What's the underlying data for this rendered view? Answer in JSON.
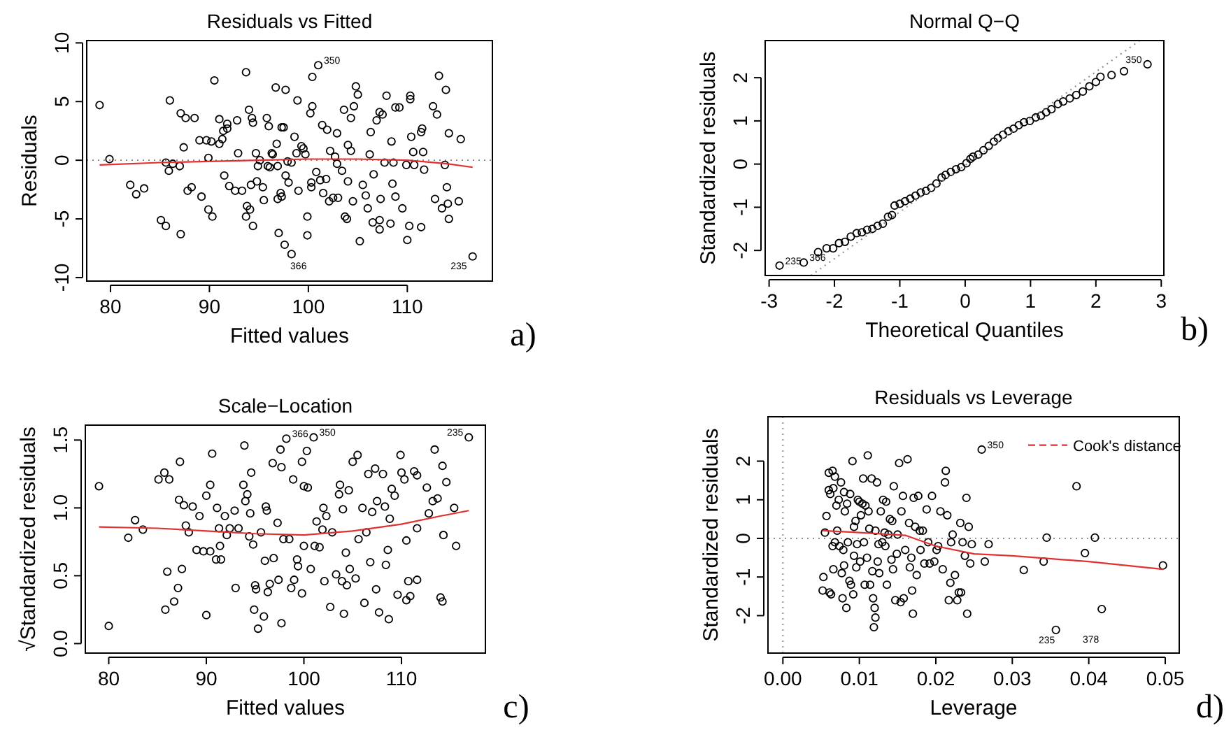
{
  "chart_data": [
    {
      "type": "scatter",
      "title": "Residuals vs Fitted",
      "xlabel": "Fitted values",
      "ylabel": "Residuals",
      "xlim": [
        77.6,
        118.6
      ],
      "ylim": [
        -10.3,
        10.2
      ],
      "xticks": [
        80,
        90,
        100,
        110
      ],
      "yticks": [
        -10,
        -5,
        0,
        5,
        10
      ],
      "marker": "circle",
      "series": [
        {
          "color": "#000000",
          "x": [
            78.9,
            79.9,
            82,
            82.6,
            83.4,
            85.1,
            85.6,
            85.6,
            85.9,
            86,
            86.3,
            87.1,
            87,
            87.1,
            87.4,
            87.6,
            87.8,
            88.2,
            88.5,
            89,
            89.2,
            89.7,
            89.9,
            89.9,
            90.2,
            90.3,
            90.5,
            91,
            91,
            91.3,
            91.4,
            91.5,
            91.8,
            91.8,
            92,
            92.6,
            92.8,
            92.9,
            93.3,
            93.7,
            93.7,
            93.8,
            94,
            94.1,
            94.2,
            94.3,
            94.4,
            94.4,
            94.7,
            94.8,
            94.9,
            95.1,
            95.4,
            95.5,
            95.8,
            95.9,
            96,
            96.1,
            96.3,
            96.4,
            96.7,
            96.8,
            96.9,
            96.9,
            97,
            97.2,
            97.3,
            97.5,
            97.3,
            97.6,
            97.7,
            97.7,
            97.9,
            98,
            98.3,
            98.3,
            98.6,
            98.8,
            98.9,
            99,
            99.3,
            99.5,
            99.7,
            99.9,
            99.9,
            100.2,
            100.3,
            100.3,
            100.4,
            100.4,
            100.8,
            101,
            101.2,
            101.4,
            101.5,
            101.8,
            101.9,
            102.1,
            102.2,
            102.5,
            102.7,
            102.9,
            102.9,
            103,
            103.4,
            103.6,
            103.7,
            103.9,
            104,
            104,
            104.3,
            104.3,
            104.5,
            104.6,
            104.8,
            105,
            105.2,
            105.5,
            105.8,
            106,
            106.2,
            106.3,
            106.5,
            106.6,
            106.9,
            107.2,
            107.2,
            107.2,
            107.3,
            107.5,
            107.7,
            107.9,
            108.3,
            108.4,
            108.5,
            108.6,
            108.8,
            108.8,
            109.2,
            109.5,
            109.9,
            110,
            110.2,
            110.3,
            110.3,
            110.4,
            110.6,
            110.7,
            111.4,
            111.4,
            111.5,
            111.6,
            111.7,
            112.6,
            112.8,
            113,
            113.2,
            113.5,
            113.8,
            113.9,
            114,
            114.2,
            114.1,
            114.2,
            115.2,
            115.4,
            116.6
          ],
          "values": [
            4.7,
            0.1,
            -2.1,
            -2.9,
            -2.4,
            -5.1,
            -5.6,
            -0.2,
            -0.9,
            5.1,
            -0.3,
            4,
            -0.5,
            -6.3,
            1.1,
            3.6,
            -2.6,
            -2.3,
            3.6,
            1.7,
            -3.1,
            1.7,
            0.2,
            -4.2,
            1.6,
            -4.8,
            6.8,
            3.5,
            1.4,
            1.8,
            2.5,
            -1.3,
            2.7,
            3.1,
            -2.2,
            -2.6,
            3.4,
            0.6,
            -2.6,
            7.5,
            -4.8,
            -3.9,
            4.3,
            -4.2,
            -2.1,
            3.6,
            -5.6,
            3.2,
            0.6,
            -1.8,
            -0.5,
            0,
            -2.3,
            -3.4,
            3.6,
            -0.5,
            2.9,
            -0.6,
            0.6,
            0.5,
            6.2,
            1.4,
            -0.5,
            -3.3,
            -6.2,
            -2.8,
            2.8,
            2.8,
            -3.1,
            -7.2,
            6,
            -1.3,
            -0.1,
            -1.9,
            -8,
            -0.2,
            2,
            0.6,
            5.1,
            -2.6,
            1.2,
            1,
            0.5,
            -6.4,
            -4.8,
            4,
            -1.9,
            -2.3,
            4.6,
            7.1,
            -1,
            8.1,
            -1.7,
            3,
            -2.8,
            -1.6,
            2.6,
            -3.5,
            0.8,
            -3.2,
            0.3,
            2.3,
            -0.3,
            -3.2,
            -0.9,
            4.3,
            -4.8,
            -5,
            1.3,
            -1.8,
            0.8,
            3.6,
            -3.5,
            4.6,
            6.3,
            5.6,
            -6.9,
            -2.1,
            -3,
            -4.1,
            0.5,
            2.4,
            -5.3,
            -1.2,
            3.4,
            4.1,
            -5.1,
            -5.9,
            -3.3,
            3.9,
            -0.2,
            5.5,
            -5.4,
            1.6,
            -2,
            -0.2,
            4.5,
            -3.1,
            4.5,
            -4.1,
            -0.4,
            -6.8,
            -5.6,
            5.5,
            5.2,
            2,
            0.7,
            -0.4,
            -5.7,
            2.4,
            2.7,
            0.7,
            -0.8,
            4.6,
            -3.3,
            3.9,
            7.2,
            -4.1,
            -0.4,
            6,
            -2.3,
            2.3,
            -3.7,
            -5,
            -3.5,
            1.8,
            -8.2
          ]
        },
        {
          "type": "line",
          "marker": "none",
          "color": "#e03030",
          "x": [
            78.9,
            85,
            90,
            95,
            100,
            105,
            110,
            114,
            116.6
          ],
          "values": [
            -0.4,
            -0.2,
            -0.1,
            0,
            0.1,
            0.1,
            0,
            -0.3,
            -0.6
          ]
        }
      ],
      "ref_lines": [
        {
          "axis": "y",
          "value": 0,
          "color": "#808080",
          "line_style": "dotted"
        }
      ],
      "annotations": [
        {
          "text": "350",
          "x": 101,
          "y": 8.1
        },
        "366",
        "235",
        "a)"
      ]
    },
    {
      "type": "scatter",
      "title": "Normal Q−Q",
      "xlabel": "Theoretical Quantiles",
      "ylabel": "Standardized residuals",
      "xlim": [
        -3.06,
        3.04
      ],
      "ylim": [
        -2.58,
        2.86
      ],
      "xticks": [
        -3,
        -2,
        -1,
        0,
        1,
        2,
        3
      ],
      "yticks": [
        -2,
        -1,
        0,
        1,
        2
      ],
      "marker": "circle",
      "series": [
        {
          "color": "#000000",
          "x": [
            -2.84,
            -2.47,
            -2.25,
            -2.12,
            -2.02,
            -1.93,
            -1.84,
            -1.75,
            -1.66,
            -1.58,
            -1.5,
            -1.42,
            -1.34,
            -1.26,
            -1.18,
            -1.12,
            -1.08,
            -1.0,
            -0.92,
            -0.84,
            -0.76,
            -0.68,
            -0.6,
            -0.52,
            -0.44,
            -0.36,
            -0.3,
            -0.22,
            -0.14,
            -0.06,
            0.02,
            0.08,
            0.12,
            0.2,
            0.28,
            0.36,
            0.44,
            0.5,
            0.58,
            0.66,
            0.74,
            0.82,
            0.9,
            0.99,
            1.08,
            1.16,
            1.24,
            1.32,
            1.42,
            1.5,
            1.6,
            1.7,
            1.8,
            1.9,
            2.0,
            2.07,
            2.24,
            2.43,
            2.79
          ],
          "values": [
            -2.35,
            -2.28,
            -2.04,
            -1.95,
            -1.95,
            -1.83,
            -1.8,
            -1.68,
            -1.6,
            -1.58,
            -1.52,
            -1.5,
            -1.43,
            -1.38,
            -1.22,
            -1.18,
            -0.96,
            -0.92,
            -0.86,
            -0.8,
            -0.73,
            -0.66,
            -0.62,
            -0.55,
            -0.45,
            -0.31,
            -0.25,
            -0.18,
            -0.12,
            -0.07,
            0.02,
            0.12,
            0.17,
            0.22,
            0.32,
            0.42,
            0.52,
            0.6,
            0.68,
            0.76,
            0.82,
            0.9,
            0.97,
            1.0,
            1.08,
            1.12,
            1.2,
            1.27,
            1.39,
            1.45,
            1.52,
            1.6,
            1.68,
            1.8,
            1.9,
            2.02,
            2.06,
            2.15,
            2.31
          ]
        },
        {
          "type": "line",
          "marker": "none",
          "color": "#909090",
          "line_style": "dotted",
          "x": [
            -2.36,
            2.67
          ],
          "values": [
            -2.58,
            2.86
          ]
        }
      ],
      "annotations": [
        {
          "text": "350",
          "x": 2.79,
          "y": 2.31
        },
        {
          "text": "366",
          "x": -2.47,
          "y": -2.28
        },
        {
          "text": "235",
          "x": -2.84,
          "y": -2.35
        },
        "b)"
      ]
    },
    {
      "type": "scatter",
      "title": "Scale−Location",
      "xlabel": "Fitted values",
      "ylabel": "√Standardized residuals",
      "xlim": [
        77.6,
        118.6
      ],
      "ylim": [
        -0.07,
        1.61
      ],
      "xticks": [
        80,
        90,
        100,
        110
      ],
      "yticks": [
        {
          "value": 0,
          "label": "0.0"
        },
        {
          "value": 0.5,
          "label": "0.5"
        },
        {
          "value": 1,
          "label": "1.0"
        },
        {
          "value": 1.5,
          "label": "1.5"
        }
      ],
      "marker": "circle",
      "series": [
        {
          "color": "#000000",
          "x": [
            79,
            80,
            82,
            82.7,
            83.5,
            85.1,
            85.7,
            85.8,
            86,
            86.2,
            86.7,
            87.1,
            87.2,
            87.3,
            87.5,
            87.7,
            87.9,
            88.2,
            88.6,
            89,
            89.3,
            89.7,
            90,
            90,
            90.4,
            90.4,
            90.6,
            91,
            91.1,
            91.3,
            91.4,
            91.5,
            91.9,
            92.1,
            92.4,
            92.9,
            93,
            93.3,
            93.8,
            93.9,
            94,
            94.2,
            94.4,
            94.5,
            94.6,
            94.8,
            94.9,
            95,
            95.1,
            95.3,
            95.6,
            95.9,
            96,
            96.1,
            96.2,
            96.3,
            96.5,
            96.8,
            96.9,
            97.3,
            97.4,
            97.6,
            97.7,
            97.7,
            97.9,
            98.2,
            98.5,
            98.7,
            98.9,
            99,
            99.3,
            99.4,
            99.8,
            99.8,
            100,
            100,
            100.3,
            100.4,
            100.7,
            101,
            101.1,
            101.3,
            101.6,
            101.9,
            102,
            102.1,
            102.3,
            102.7,
            102.9,
            103.3,
            103.6,
            103.7,
            103.9,
            104,
            104.1,
            104.3,
            104.4,
            104.6,
            104.7,
            105,
            105.3,
            105.5,
            105.6,
            106,
            106.2,
            106.4,
            106.6,
            106.8,
            107,
            107.3,
            107.4,
            107.5,
            107.7,
            108.1,
            108.3,
            108.4,
            108.6,
            108.7,
            108.8,
            109,
            109.3,
            109.6,
            109.9,
            110,
            110.3,
            110.5,
            110.5,
            110.7,
            110.9,
            111.3,
            111.6,
            111.6,
            111.6,
            112.6,
            112.8,
            113.2,
            113.4,
            113.7,
            114,
            114.2,
            114.2,
            114.3,
            114.6,
            115.4,
            115.6,
            116.9
          ],
          "values": [
            1.16,
            0.13,
            0.78,
            0.91,
            0.84,
            1.21,
            1.26,
            0.25,
            0.53,
            1.21,
            0.31,
            0.41,
            1.06,
            1.34,
            0.55,
            1.02,
            0.87,
            0.82,
            1.01,
            0.69,
            0.94,
            0.68,
            1.09,
            0.21,
            0.68,
            1.17,
            1.4,
            0.62,
            1.0,
            0.85,
            0.72,
            0.62,
            0.94,
            0.8,
            0.85,
            0.98,
            0.41,
            0.85,
            1.17,
            1.46,
            1.05,
            1.1,
            0.79,
            0.96,
            1.26,
            0.73,
            0.25,
            0.43,
            0.4,
            0.11,
            0.82,
            0.2,
            0.61,
            1.01,
            0.98,
            0.38,
            0.44,
            1.33,
            0.63,
            0.89,
            0.47,
            1.43,
            1.3,
            0.15,
            0.77,
            1.51,
            0.77,
            0.41,
            1.21,
            0.47,
            0.62,
            0.57,
            1.34,
            0.37,
            1.16,
            0.72,
            1.42,
            1.15,
            0.55,
            1.52,
            0.72,
            0.9,
            0.71,
            0.84,
            1.0,
            0.46,
            0.94,
            0.27,
            0.82,
            0.51,
            1.1,
            1.17,
            0.46,
            0.99,
            0.22,
            0.67,
            0.43,
            1.13,
            0.55,
            1.34,
            0.48,
            1.39,
            0.77,
            1.0,
            0.3,
            0.82,
            1.25,
            0.6,
            0.97,
            1.29,
            0.4,
            1.05,
            0.23,
            1.25,
            1.01,
            0.58,
            0.69,
            0.18,
            0.92,
            1.14,
            1.09,
            0.36,
            1.39,
            1.26,
            1.21,
            0.76,
            0.32,
            0.46,
            0.35,
            1.27,
            0.85,
            0.47,
            1.24,
            1.15,
            0.96,
            1.05,
            1.43,
            1.07,
            0.34,
            1.31,
            0.31,
            0.8,
            1.19,
            1.0,
            0.72,
            1.52
          ]
        },
        {
          "type": "line",
          "marker": "none",
          "color": "#e03030",
          "x": [
            79,
            85,
            90,
            95,
            100,
            105,
            110,
            114,
            116.9
          ],
          "values": [
            0.86,
            0.85,
            0.83,
            0.81,
            0.8,
            0.83,
            0.88,
            0.94,
            0.98
          ]
        }
      ],
      "annotations": [
        {
          "text": "366",
          "x": 98.2,
          "y": 1.51
        },
        {
          "text": "350",
          "x": 101,
          "y": 1.52
        },
        {
          "text": "235",
          "x": 116.9,
          "y": 1.52
        },
        "c)"
      ]
    },
    {
      "type": "scatter",
      "title": "Residuals vs Leverage",
      "xlabel": "Leverage",
      "ylabel": "Standardized residuals",
      "xlim": [
        -0.00195,
        0.05183
      ],
      "ylim": [
        -2.97,
        3.15
      ],
      "xticks": [
        {
          "value": 0,
          "label": "0.00"
        },
        {
          "value": 0.01,
          "label": "0.01"
        },
        {
          "value": 0.02,
          "label": "0.02"
        },
        {
          "value": 0.03,
          "label": "0.03"
        },
        {
          "value": 0.04,
          "label": "0.04"
        },
        {
          "value": 0.05,
          "label": "0.05"
        }
      ],
      "yticks": [
        -2,
        -1,
        0,
        1,
        2
      ],
      "marker": "circle",
      "legend": "top right",
      "series": [
        {
          "color": "#000000",
          "x": [
            0.0052,
            0.0053,
            0.0055,
            0.0057,
            0.006,
            0.006,
            0.0061,
            0.0063,
            0.0062,
            0.0065,
            0.0066,
            0.0065,
            0.0066,
            0.0068,
            0.0068,
            0.007,
            0.0071,
            0.0073,
            0.0074,
            0.0076,
            0.0077,
            0.0078,
            0.0079,
            0.008,
            0.008,
            0.0081,
            0.0083,
            0.0084,
            0.0085,
            0.0087,
            0.0088,
            0.0089,
            0.0091,
            0.0092,
            0.0093,
            0.0093,
            0.0095,
            0.0096,
            0.0097,
            0.0098,
            0.01,
            0.0101,
            0.0102,
            0.0104,
            0.0105,
            0.0106,
            0.0107,
            0.0108,
            0.011,
            0.0111,
            0.0112,
            0.0113,
            0.0114,
            0.0116,
            0.0117,
            0.0118,
            0.0119,
            0.012,
            0.0121,
            0.0121,
            0.0123,
            0.0124,
            0.0125,
            0.0126,
            0.0128,
            0.013,
            0.0131,
            0.0133,
            0.0134,
            0.0135,
            0.0136,
            0.0138,
            0.014,
            0.0142,
            0.0143,
            0.0144,
            0.0145,
            0.0147,
            0.0149,
            0.015,
            0.0152,
            0.0154,
            0.0155,
            0.0157,
            0.0158,
            0.016,
            0.0163,
            0.0165,
            0.0166,
            0.0168,
            0.0169,
            0.017,
            0.0171,
            0.0173,
            0.0175,
            0.0177,
            0.0179,
            0.018,
            0.0183,
            0.0185,
            0.0188,
            0.019,
            0.0192,
            0.0195,
            0.0198,
            0.0201,
            0.0203,
            0.0206,
            0.0209,
            0.0212,
            0.0213,
            0.0215,
            0.0217,
            0.0219,
            0.022,
            0.0222,
            0.0225,
            0.0228,
            0.023,
            0.0232,
            0.0233,
            0.0235,
            0.0238,
            0.024,
            0.0241,
            0.0243,
            0.0245,
            0.0247,
            0.026,
            0.0264,
            0.0269,
            0.0315,
            0.0341,
            0.0345,
            0.0357,
            0.0384,
            0.0395,
            0.0408,
            0.0417,
            0.0497
          ],
          "values": [
            -1.35,
            -1.0,
            0.15,
            0.58,
            1.7,
            1.25,
            -1.4,
            -1.45,
            1.15,
            1.75,
            1.3,
            -0.2,
            -0.8,
            1.6,
            -0.1,
            0.85,
            0.2,
            1.0,
            -0.2,
            1.45,
            -0.9,
            -1.55,
            -0.3,
            1.2,
            -0.7,
            0.7,
            -1.8,
            0.9,
            -0.1,
            -1.1,
            1.15,
            -1.2,
            2.0,
            -1.45,
            -0.45,
            0.3,
            0.45,
            -0.75,
            -0.15,
            1.0,
            0.95,
            -0.6,
            0.6,
            0.9,
            1.55,
            -0.1,
            -1.2,
            0.85,
            -0.5,
            2.15,
            0.7,
            0.25,
            -1.2,
            1.55,
            -0.85,
            -1.55,
            -2.3,
            -1.8,
            -2.05,
            0.2,
            1.45,
            -0.6,
            -0.15,
            -0.9,
            0.7,
            -0.1,
            1.0,
            0.15,
            -0.2,
            0.95,
            -1.2,
            0.1,
            0.5,
            -0.55,
            0.45,
            -0.8,
            1.35,
            -1.6,
            -0.4,
            0.1,
            1.95,
            -1.65,
            0.7,
            1.1,
            -1.55,
            -0.3,
            2.05,
            0.4,
            -0.75,
            -0.5,
            -1.35,
            -1.95,
            1.05,
            0.3,
            -0.95,
            1.1,
            0.2,
            -0.3,
            0.2,
            -0.65,
            0.75,
            -0.1,
            -0.65,
            1.1,
            -0.6,
            -0.3,
            -0.2,
            0.7,
            -0.8,
            1.45,
            1.75,
            0.6,
            -1.6,
            -1.15,
            -0.1,
            0.1,
            -0.95,
            -1.6,
            -1.4,
            0.4,
            -1.4,
            -0.1,
            -0.45,
            1.05,
            -1.95,
            0.3,
            -0.65,
            -0.15,
            2.3,
            -0.6,
            -0.15,
            -0.82,
            -0.6,
            0.02,
            -2.37,
            1.35,
            -0.38,
            0.02,
            -1.83,
            -0.7
          ]
        },
        {
          "type": "line",
          "marker": "none",
          "color": "#e03030",
          "x": [
            0.0052,
            0.01,
            0.016,
            0.02,
            0.025,
            0.03,
            0.04,
            0.0497
          ],
          "values": [
            0.2,
            0.15,
            0.08,
            -0.2,
            -0.4,
            -0.45,
            -0.6,
            -0.8
          ]
        },
        {
          "type": "line",
          "name": "Cook's distance",
          "color": "#e03030",
          "line_style": "dashed"
        }
      ],
      "ref_lines": [
        {
          "axis": "x",
          "value": 0,
          "color": "#808080",
          "line_style": "dotted"
        },
        {
          "axis": "y",
          "value": 0,
          "color": "#808080",
          "line_style": "dotted"
        }
      ],
      "annotations": [
        {
          "text": "350",
          "x": 0.026,
          "y": 2.3
        },
        "235",
        "378",
        "d)"
      ]
    }
  ]
}
